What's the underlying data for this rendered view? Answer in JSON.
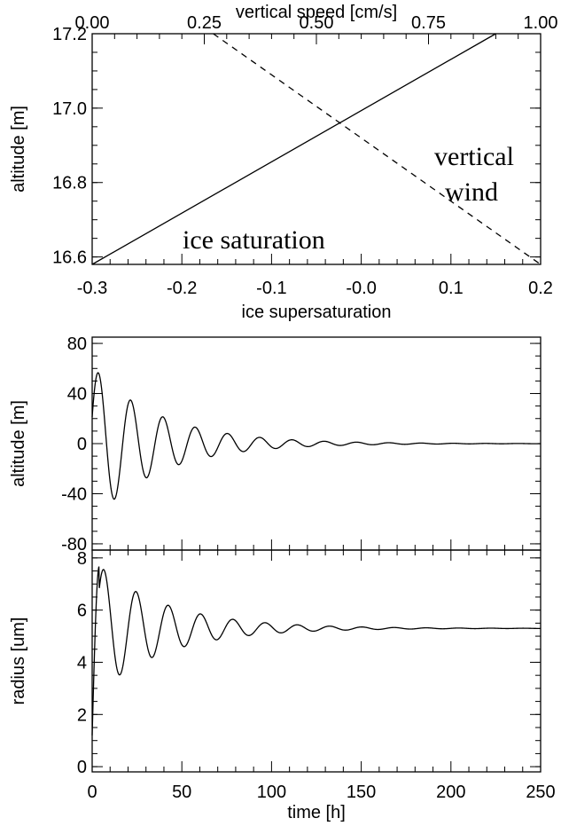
{
  "chart_data": [
    {
      "type": "line",
      "ylabel": "altitude [m]",
      "xlabel": "ice supersaturation",
      "xlabel_top": "vertical speed [cm/s]",
      "xlim": [
        -0.3,
        0.2
      ],
      "xlim_top": [
        0.0,
        1.0
      ],
      "ylim": [
        16.58,
        17.2
      ],
      "xticks": [
        "-0.3",
        "-0.2",
        "-0.1",
        "-0.0",
        "0.1",
        "0.2"
      ],
      "xticks_top": [
        "0.00",
        "0.25",
        "0.50",
        "0.75",
        "1.00"
      ],
      "yticks": [
        "16.6",
        "16.8",
        "17.0",
        "17.2"
      ],
      "series": [
        {
          "axis": "bottom",
          "style": "solid",
          "x": [
            -0.3,
            0.15
          ],
          "y": [
            16.58,
            17.2
          ]
        },
        {
          "axis": "top",
          "style": "dashed",
          "x": [
            0.27,
            1.0
          ],
          "y": [
            17.2,
            16.58
          ]
        }
      ],
      "annotations": [
        {
          "text": "ice saturation",
          "x": -0.21,
          "y": 16.68
        },
        {
          "text": "vertical",
          "x": 0.14,
          "y": 16.93
        },
        {
          "text": "wind",
          "x": 0.16,
          "y": 16.83
        }
      ]
    },
    {
      "type": "line",
      "ylabel": "altitude [m]",
      "xlim": [
        0,
        250
      ],
      "ylim": [
        -85,
        85
      ],
      "yticks": [
        "80",
        "40",
        "0",
        "-40",
        "-80"
      ],
      "series": [
        {
          "name": "altitude",
          "amp": 62,
          "decay": 0.027,
          "period": 18,
          "mode": "osc"
        }
      ]
    },
    {
      "type": "line",
      "ylabel": "radius [um]",
      "xlabel": "time [h]",
      "xlim": [
        0,
        250
      ],
      "ylim": [
        -0.2,
        8.3
      ],
      "xticks": [
        "0",
        "50",
        "100",
        "150",
        "200",
        "250"
      ],
      "yticks": [
        "8",
        "6",
        "4",
        "2",
        "0"
      ],
      "series": [
        {
          "name": "radius",
          "base": 5.3,
          "amp": 4.3,
          "decay": 0.026,
          "period": 18,
          "start": 1.2,
          "mode": "rise"
        }
      ]
    }
  ]
}
